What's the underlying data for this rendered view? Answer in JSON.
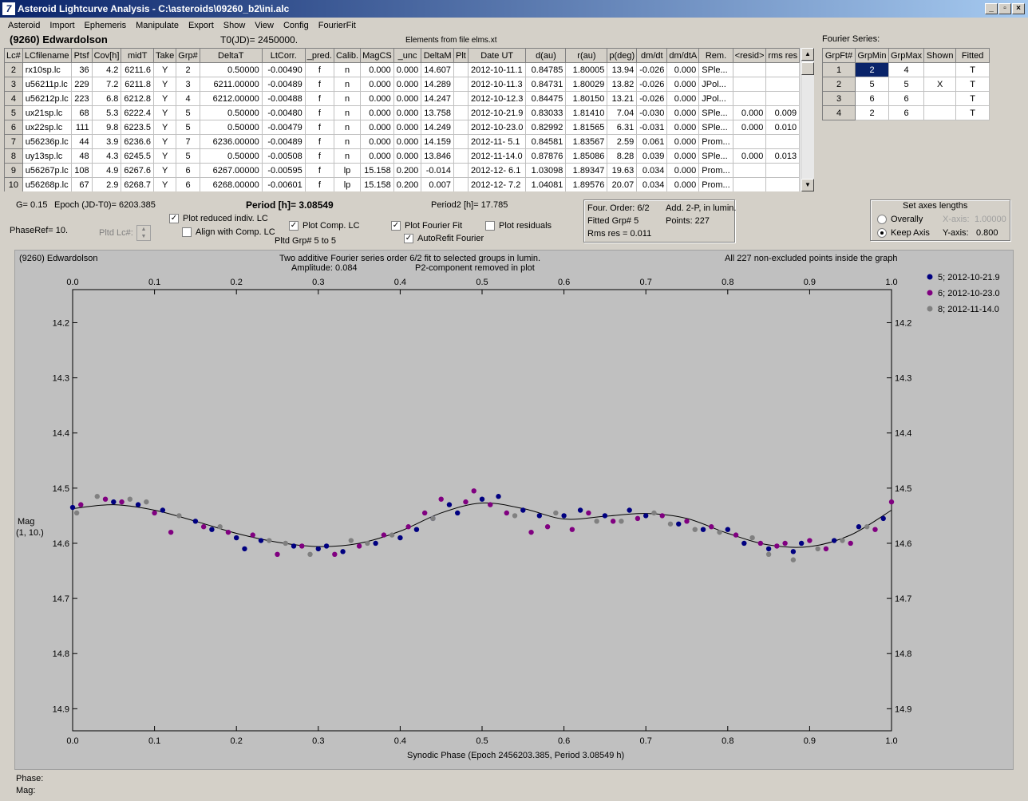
{
  "window": {
    "title": "Asteroid Lightcurve Analysis - C:\\asteroids\\09260_b2\\ini.alc",
    "icon_text": "7",
    "btn_minimize": "_",
    "btn_restore": "▫",
    "btn_close": "×"
  },
  "menu": [
    "Asteroid",
    "Import",
    "Ephemeris",
    "Manipulate",
    "Export",
    "Show",
    "View",
    "Config",
    "FourierFit"
  ],
  "header": {
    "asteroid": "(9260) Edwardolson",
    "t0": "T0(JD)= 2450000.",
    "elements": "Elements from file elms.xt"
  },
  "lc_table": {
    "columns": [
      "Lc#",
      "LCfilename",
      "Ptsf",
      "Cov[h]",
      "midT",
      "Take",
      "Grp#",
      "DeltaT",
      "LtCorr.",
      "_pred.",
      "Calib.",
      "MagCS",
      "_unc",
      "DeltaM",
      "Plt",
      "Date UT",
      "d(au)",
      "r(au)",
      "p(deg)",
      "dm/dt",
      "dm/dtA",
      "Rem.",
      "<resid>",
      "rms res"
    ],
    "rows": [
      [
        "2",
        "rx10sp.lc",
        "36",
        "4.2",
        "6211.6",
        "Y",
        "2",
        "0.50000",
        "-0.00490",
        "f",
        "n",
        "0.000",
        "0.000",
        "14.607",
        "",
        "2012-10-11.1",
        "0.84785",
        "1.80005",
        "13.94",
        "-0.026",
        "0.000",
        "SPle...",
        "",
        ""
      ],
      [
        "3",
        "u56211p.lc",
        "229",
        "7.2",
        "6211.8",
        "Y",
        "3",
        "6211.00000",
        "-0.00489",
        "f",
        "n",
        "0.000",
        "0.000",
        "14.289",
        "",
        "2012-10-11.3",
        "0.84731",
        "1.80029",
        "13.82",
        "-0.026",
        "0.000",
        "JPol...",
        "",
        ""
      ],
      [
        "4",
        "u56212p.lc",
        "223",
        "6.8",
        "6212.8",
        "Y",
        "4",
        "6212.00000",
        "-0.00488",
        "f",
        "n",
        "0.000",
        "0.000",
        "14.247",
        "",
        "2012-10-12.3",
        "0.84475",
        "1.80150",
        "13.21",
        "-0.026",
        "0.000",
        "JPol...",
        "",
        ""
      ],
      [
        "5",
        "ux21sp.lc",
        "68",
        "5.3",
        "6222.4",
        "Y",
        "5",
        "0.50000",
        "-0.00480",
        "f",
        "n",
        "0.000",
        "0.000",
        "13.758",
        "",
        "2012-10-21.9",
        "0.83033",
        "1.81410",
        "7.04",
        "-0.030",
        "0.000",
        "SPle...",
        "0.000",
        "0.009"
      ],
      [
        "6",
        "ux22sp.lc",
        "111",
        "9.8",
        "6223.5",
        "Y",
        "5",
        "0.50000",
        "-0.00479",
        "f",
        "n",
        "0.000",
        "0.000",
        "14.249",
        "",
        "2012-10-23.0",
        "0.82992",
        "1.81565",
        "6.31",
        "-0.031",
        "0.000",
        "SPle...",
        "0.000",
        "0.010"
      ],
      [
        "7",
        "u56236p.lc",
        "44",
        "3.9",
        "6236.6",
        "Y",
        "7",
        "6236.00000",
        "-0.00489",
        "f",
        "n",
        "0.000",
        "0.000",
        "14.159",
        "",
        "2012-11- 5.1",
        "0.84581",
        "1.83567",
        "2.59",
        "0.061",
        "0.000",
        "Prom...",
        "",
        ""
      ],
      [
        "8",
        "uy13sp.lc",
        "48",
        "4.3",
        "6245.5",
        "Y",
        "5",
        "0.50000",
        "-0.00508",
        "f",
        "n",
        "0.000",
        "0.000",
        "13.846",
        "",
        "2012-11-14.0",
        "0.87876",
        "1.85086",
        "8.28",
        "0.039",
        "0.000",
        "SPle...",
        "0.000",
        "0.013"
      ],
      [
        "9",
        "u56267p.lc",
        "108",
        "4.9",
        "6267.6",
        "Y",
        "6",
        "6267.00000",
        "-0.00595",
        "f",
        "lp",
        "15.158",
        "0.200",
        "-0.014",
        "",
        "2012-12- 6.1",
        "1.03098",
        "1.89347",
        "19.63",
        "0.034",
        "0.000",
        "Prom...",
        "",
        ""
      ],
      [
        "10",
        "u56268p.lc",
        "67",
        "2.9",
        "6268.7",
        "Y",
        "6",
        "6268.00000",
        "-0.00601",
        "f",
        "lp",
        "15.158",
        "0.200",
        "0.007",
        "",
        "2012-12- 7.2",
        "1.04081",
        "1.89576",
        "20.07",
        "0.034",
        "0.000",
        "Prom...",
        "",
        ""
      ]
    ]
  },
  "fourier": {
    "title": "Fourier Series:",
    "columns": [
      "GrpFt#",
      "GrpMin",
      "GrpMax",
      "Shown",
      "Fitted"
    ],
    "rows": [
      [
        "1",
        "2",
        "4",
        "",
        "T"
      ],
      [
        "2",
        "5",
        "5",
        "X",
        "T"
      ],
      [
        "3",
        "6",
        "6",
        "",
        "T"
      ],
      [
        "4",
        "2",
        "6",
        "",
        "T"
      ]
    ]
  },
  "controls": {
    "g": "G= 0.15",
    "epoch": "Epoch (JD-T0)= 6203.385",
    "period": "Period [h]= 3.08549",
    "period2": "Period2 [h]= 17.785",
    "phaseref": "PhaseRef= 10.",
    "pltd_lc": "Pltd Lc#:",
    "plot_reduced": "Plot reduced indiv. LC",
    "align_comp": "Align with Comp. LC",
    "plot_comp": "Plot Comp. LC",
    "pltd_grp": "Pltd Grp#  5   to   5",
    "plot_fourier": "Plot Fourier Fit",
    "autorefit": "AutoRefit Fourier",
    "plot_residuals": "Plot residuals",
    "check_mark": "✓"
  },
  "fit_info": {
    "order": "Four. Order:  6/2",
    "add": "Add. 2-P, in lumin.",
    "fitted": "Fitted Grp# 5",
    "points": "Points: 227",
    "rms": "Rms res     = 0.011"
  },
  "axes_box": {
    "title": "Set axes lengths",
    "overally": "Overally",
    "keep": "Keep Axis",
    "xaxis_label": "X-axis:",
    "xaxis_value": "1.00000",
    "yaxis_label": "Y-axis:",
    "yaxis_value": "0.800"
  },
  "plot": {
    "name": "(9260) Edwardolson",
    "subtitle1": "Two additive Fourier series order 6/2 fit to selected groups in lumin.",
    "subtitle2": "Amplitude: 0.084",
    "subtitle3": "P2-component removed in plot",
    "points_note": "All 227 non-excluded points inside the graph",
    "ylabel1": "Mag",
    "ylabel2": "(1, 10.)",
    "xlabel": "Synodic Phase (Epoch 2456203.385, Period 3.08549 h)"
  },
  "status": {
    "phase": "Phase:",
    "mag": "Mag:"
  },
  "chart_data": {
    "type": "scatter",
    "title": "Two additive Fourier series order 6/2 fit to selected groups in lumin.",
    "xlabel": "Synodic Phase (Epoch 2456203.385, Period 3.08549 h)",
    "ylabel": "Mag",
    "xlim": [
      0.0,
      1.0
    ],
    "ylim": [
      14.14,
      14.94
    ],
    "y_inverted": true,
    "xticks": [
      "0.0",
      "0.1",
      "0.2",
      "0.3",
      "0.4",
      "0.5",
      "0.6",
      "0.7",
      "0.8",
      "0.9",
      "1.0"
    ],
    "yticks": [
      "14.2",
      "14.3",
      "14.4",
      "14.5",
      "14.6",
      "14.7",
      "14.8",
      "14.9"
    ],
    "legend_position": "top-right",
    "series": [
      {
        "name": "5; 2012-10-21.9",
        "color": "#000080",
        "x": [
          0.0,
          0.05,
          0.08,
          0.11,
          0.15,
          0.17,
          0.2,
          0.21,
          0.23,
          0.27,
          0.3,
          0.31,
          0.33,
          0.37,
          0.4,
          0.42,
          0.44,
          0.46,
          0.47,
          0.5,
          0.52,
          0.55,
          0.57,
          0.6,
          0.62,
          0.65,
          0.68,
          0.7,
          0.74,
          0.77,
          0.8,
          0.82,
          0.85,
          0.88,
          0.89,
          0.93,
          0.96,
          0.99
        ],
        "y": [
          14.535,
          14.525,
          14.53,
          14.54,
          14.56,
          14.575,
          14.59,
          14.61,
          14.595,
          14.605,
          14.61,
          14.605,
          14.615,
          14.6,
          14.59,
          14.575,
          14.555,
          14.53,
          14.545,
          14.52,
          14.515,
          14.54,
          14.55,
          14.55,
          14.54,
          14.55,
          14.54,
          14.55,
          14.565,
          14.575,
          14.575,
          14.6,
          14.61,
          14.615,
          14.6,
          14.595,
          14.57,
          14.555
        ]
      },
      {
        "name": "6; 2012-10-23.0",
        "color": "#800080",
        "x": [
          0.01,
          0.04,
          0.06,
          0.1,
          0.12,
          0.16,
          0.19,
          0.22,
          0.25,
          0.28,
          0.32,
          0.35,
          0.38,
          0.41,
          0.43,
          0.45,
          0.48,
          0.49,
          0.51,
          0.53,
          0.56,
          0.58,
          0.61,
          0.63,
          0.66,
          0.69,
          0.72,
          0.75,
          0.78,
          0.81,
          0.84,
          0.86,
          0.87,
          0.9,
          0.92,
          0.95,
          0.98,
          1.0
        ],
        "y": [
          14.53,
          14.52,
          14.525,
          14.545,
          14.58,
          14.57,
          14.58,
          14.585,
          14.62,
          14.605,
          14.62,
          14.605,
          14.585,
          14.57,
          14.545,
          14.52,
          14.525,
          14.505,
          14.53,
          14.545,
          14.58,
          14.57,
          14.575,
          14.545,
          14.56,
          14.555,
          14.55,
          14.56,
          14.57,
          14.585,
          14.6,
          14.605,
          14.6,
          14.595,
          14.61,
          14.6,
          14.575,
          14.525
        ]
      },
      {
        "name": "8; 2012-11-14.0",
        "color": "#808080",
        "x": [
          0.005,
          0.03,
          0.07,
          0.09,
          0.13,
          0.18,
          0.24,
          0.26,
          0.29,
          0.34,
          0.36,
          0.39,
          0.44,
          0.54,
          0.59,
          0.64,
          0.67,
          0.71,
          0.73,
          0.76,
          0.79,
          0.83,
          0.85,
          0.88,
          0.91,
          0.94,
          0.97
        ],
        "y": [
          14.545,
          14.515,
          14.52,
          14.525,
          14.55,
          14.57,
          14.595,
          14.6,
          14.62,
          14.595,
          14.6,
          14.585,
          14.555,
          14.55,
          14.545,
          14.56,
          14.56,
          14.545,
          14.565,
          14.575,
          14.58,
          14.59,
          14.62,
          14.63,
          14.61,
          14.595,
          14.57
        ]
      }
    ],
    "fit_curve": {
      "name": "Fourier fit",
      "x": [
        0.0,
        0.05,
        0.1,
        0.15,
        0.2,
        0.25,
        0.3,
        0.35,
        0.4,
        0.45,
        0.5,
        0.55,
        0.6,
        0.65,
        0.7,
        0.75,
        0.8,
        0.85,
        0.9,
        0.95,
        1.0
      ],
      "y": [
        14.537,
        14.53,
        14.54,
        14.56,
        14.582,
        14.598,
        14.606,
        14.6,
        14.578,
        14.545,
        14.527,
        14.537,
        14.556,
        14.551,
        14.546,
        14.555,
        14.582,
        14.603,
        14.606,
        14.585,
        14.54
      ]
    }
  }
}
